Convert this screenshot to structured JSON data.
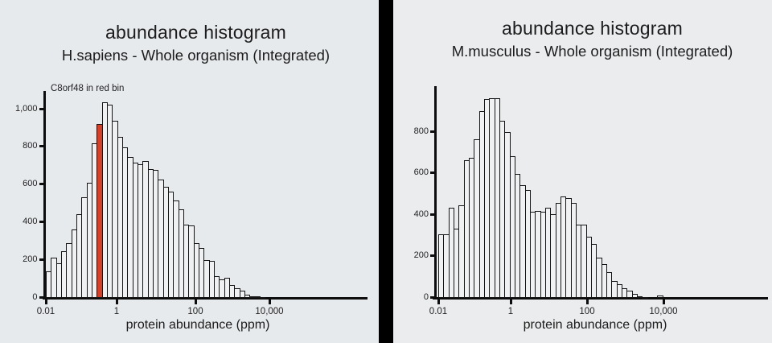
{
  "page": {
    "background_left": "#e7eaed",
    "background_right": "#eaecee",
    "divider_color": "#000000"
  },
  "chart_data": [
    {
      "type": "bar",
      "title": "abundance histogram",
      "subtitle": "H.sapiens - Whole organism (Integrated)",
      "annotation": "C8orf48 in red bin",
      "xlabel": "protein abundance (ppm)",
      "x_scale": "log10",
      "x_tick_labels": [
        "0.01",
        "1",
        "100",
        "10,000"
      ],
      "bins_per_decade": 7,
      "first_bin_ppm": 0.01,
      "ylim": [
        0,
        1100
      ],
      "grid": false,
      "legend": false,
      "y_ticks": [
        {
          "value": 0,
          "label": "0"
        },
        {
          "value": 200,
          "label": "200"
        },
        {
          "value": 400,
          "label": "400"
        },
        {
          "value": 600,
          "label": "600"
        },
        {
          "value": 800,
          "label": "800"
        },
        {
          "value": 1000,
          "label": "1,000"
        }
      ],
      "values": [
        140,
        215,
        185,
        250,
        290,
        365,
        445,
        535,
        610,
        820,
        925,
        1040,
        1025,
        940,
        855,
        800,
        750,
        720,
        710,
        725,
        685,
        680,
        630,
        590,
        565,
        515,
        470,
        390,
        385,
        290,
        265,
        200,
        195,
        115,
        100,
        105,
        70,
        50,
        40,
        15,
        8,
        8,
        5
      ],
      "highlight_index": 10,
      "highlight_color": "#d93f27",
      "bar_fill": "#f0f1f2",
      "bar_stroke": "#151515"
    },
    {
      "type": "bar",
      "title": "abundance histogram",
      "subtitle": "M.musculus - Whole organism (Integrated)",
      "xlabel": "protein abundance (ppm)",
      "x_scale": "log10",
      "x_tick_labels": [
        "0.01",
        "1",
        "100",
        "10,000"
      ],
      "bins_per_decade": 7,
      "first_bin_ppm": 0.01,
      "ylim": [
        0,
        1000
      ],
      "grid": false,
      "legend": false,
      "y_ticks": [
        {
          "value": 0,
          "label": "0"
        },
        {
          "value": 200,
          "label": "200"
        },
        {
          "value": 400,
          "label": "400"
        },
        {
          "value": 600,
          "label": "600"
        },
        {
          "value": 800,
          "label": "800"
        }
      ],
      "values": [
        305,
        305,
        435,
        335,
        445,
        665,
        675,
        765,
        900,
        960,
        965,
        965,
        855,
        800,
        685,
        600,
        545,
        520,
        415,
        420,
        415,
        435,
        405,
        460,
        490,
        480,
        460,
        355,
        355,
        295,
        260,
        195,
        165,
        125,
        80,
        65,
        45,
        35,
        18,
        8,
        4,
        0,
        0,
        12
      ],
      "bar_fill": "#f0f1f2",
      "bar_stroke": "#151515"
    }
  ]
}
